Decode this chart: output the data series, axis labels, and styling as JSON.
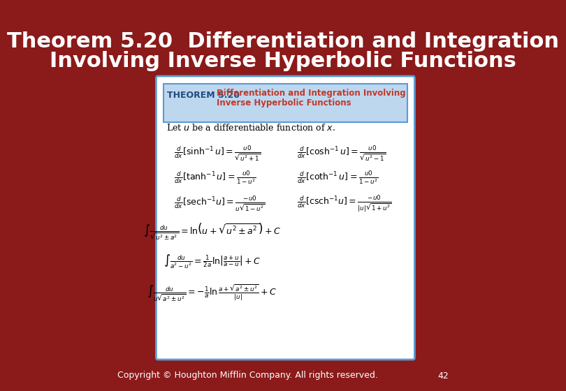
{
  "bg_color": "#8B1A1A",
  "title_text_line1": "Theorem 5.20  Differentiation and Integration",
  "title_text_line2": "Involving Inverse Hyperbolic Functions",
  "title_color": "#FFFFFF",
  "title_fontsize": 22,
  "box_bg": "#FFFFFF",
  "box_border": "#5B9BD5",
  "header_bg": "#BDD7EE",
  "header_title_bold": "THEOREM 5.20",
  "header_title_color": "#1F497D",
  "header_subtitle_color": "#C0392B",
  "header_subtitle": "Differentiation and Integration Involving\nInverse Hyperbolic Functions",
  "footer_text": "Copyright © Houghton Mifflin Company. All rights reserved.",
  "footer_color": "#FFFFFF",
  "footer_fontsize": 9,
  "page_number": "42",
  "page_number_color": "#FFFFFF"
}
